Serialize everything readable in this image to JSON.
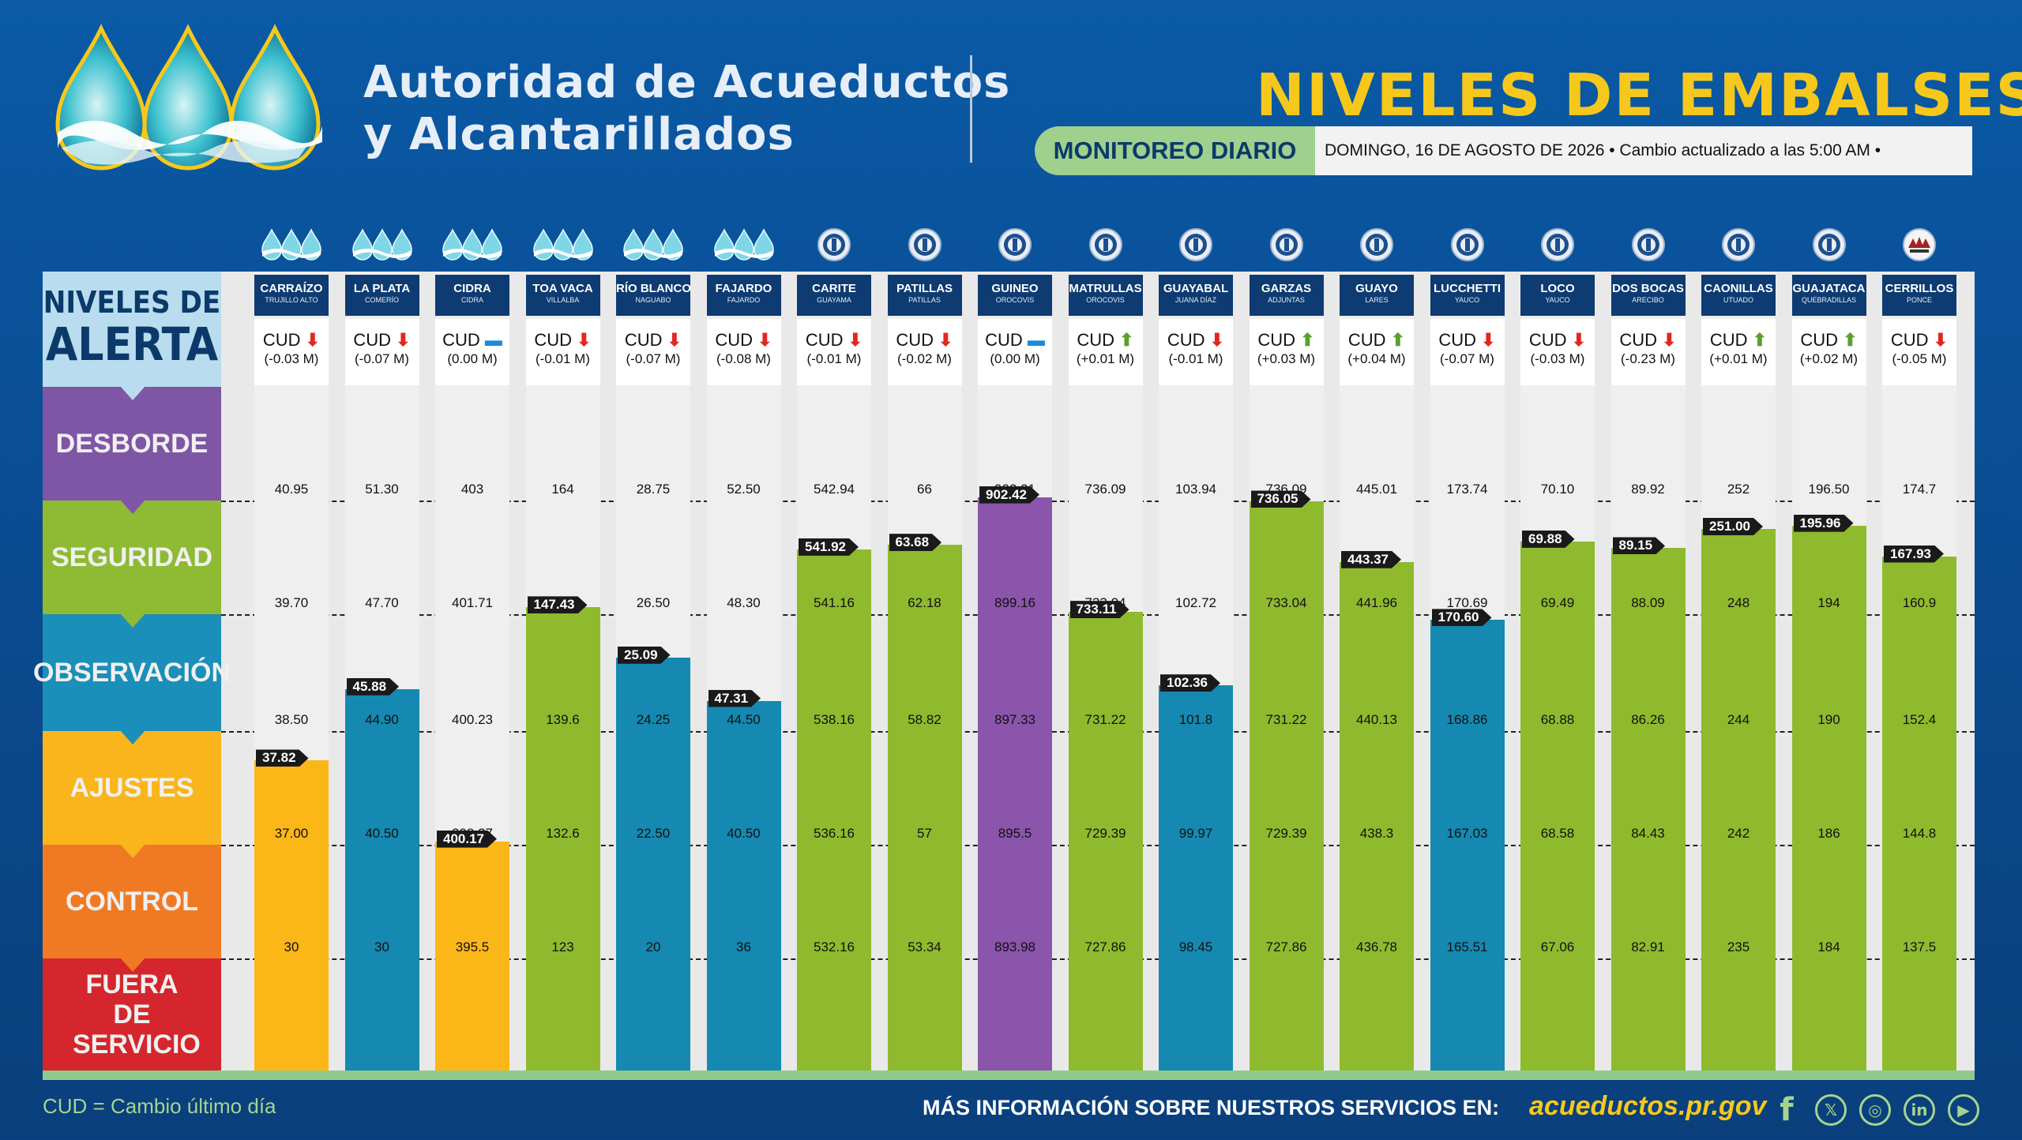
{
  "header": {
    "org_line1": "Autoridad de Acueductos",
    "org_line2": "y Alcantarillados",
    "title_a": "NIVELES DE ",
    "title_b": "EMBALSES",
    "monitor_label": "MONITOREO DIARIO",
    "date_text": "DOMINGO, 16 DE AGOSTO DE 2026 • Cambio actualizado a las 5:00 AM •"
  },
  "legend": {
    "title_l1": "NIVELES DE",
    "title_l2": "ALERTA",
    "bands": [
      {
        "label": "DESBORDE",
        "color": "#7f55a6"
      },
      {
        "label": "SEGURIDAD",
        "color": "#8fba34"
      },
      {
        "label": "OBSERVACIÓN",
        "color": "#1a8fb9"
      },
      {
        "label": "AJUSTES",
        "color": "#f9b51b"
      },
      {
        "label": "CONTROL",
        "color": "#f07a24"
      },
      {
        "label": "FUERA DE SERVICIO",
        "color": "#d4262c"
      }
    ]
  },
  "colors": {
    "purple": "#8a55aa",
    "green": "#8fba2e",
    "blue": "#1589b1",
    "yellow": "#fbb718",
    "orange": "#f07a24",
    "red": "#d4262c"
  },
  "reservoirs": [
    {
      "name": "CARRAÍZO",
      "town": "TRUJILLO ALTO",
      "icon": "water-drops-icon",
      "cud_label": "CUD",
      "trend": "down",
      "delta": "(-0.03 M)",
      "levels": [
        "40.95",
        "39.70",
        "38.50",
        "37.00",
        "30"
      ],
      "current": "37.82",
      "fraction": 0.74,
      "zone": "yellow"
    },
    {
      "name": "LA PLATA",
      "town": "COMERÍO",
      "icon": "water-drops-icon",
      "cud_label": "CUD",
      "trend": "down",
      "delta": "(-0.07 M)",
      "levels": [
        "51.30",
        "47.70",
        "44.90",
        "40.50",
        "30"
      ],
      "current": "45.88",
      "fraction": 0.36,
      "zone": "blue"
    },
    {
      "name": "CIDRA",
      "town": "CIDRA",
      "icon": "water-drops-icon",
      "cud_label": "CUD",
      "trend": "flat",
      "delta": "(0.00 M)",
      "levels": [
        "403",
        "401.71",
        "400.23",
        "398.37",
        "395.5"
      ],
      "current": "400.17",
      "fraction": 0.03,
      "zone": "yellow"
    },
    {
      "name": "TOA VACA",
      "town": "VILLALBA",
      "icon": "water-drops-icon",
      "cud_label": "CUD",
      "trend": "down",
      "delta": "(-0.01 M)",
      "levels": [
        "164",
        "147",
        "139.6",
        "132.6",
        "123"
      ],
      "current": "147.43",
      "fraction": 0.06,
      "zone": "green"
    },
    {
      "name": "RÍO BLANCO",
      "town": "NAGUABO",
      "icon": "water-drops-icon",
      "cud_label": "CUD",
      "trend": "down",
      "delta": "(-0.07 M)",
      "levels": [
        "28.75",
        "26.50",
        "24.25",
        "22.50",
        "20"
      ],
      "current": "25.09",
      "fraction": 0.63,
      "zone": "blue"
    },
    {
      "name": "FAJARDO",
      "town": "FAJARDO",
      "icon": "water-drops-icon",
      "cud_label": "CUD",
      "trend": "down",
      "delta": "(-0.08 M)",
      "levels": [
        "52.50",
        "48.30",
        "44.50",
        "40.50",
        "36"
      ],
      "current": "47.31",
      "fraction": 0.26,
      "zone": "blue"
    },
    {
      "name": "CARITE",
      "town": "GUAYAMA",
      "icon": "seal-icon",
      "cud_label": "CUD",
      "trend": "down",
      "delta": "(-0.01 M)",
      "levels": [
        "542.94",
        "541.16",
        "538.16",
        "536.16",
        "532.16"
      ],
      "current": "541.92",
      "fraction": 0.57,
      "zone": "green"
    },
    {
      "name": "PATILLAS",
      "town": "PATILLAS",
      "icon": "seal-icon",
      "cud_label": "CUD",
      "trend": "down",
      "delta": "(-0.02 M)",
      "levels": [
        "66",
        "62.18",
        "58.82",
        "57",
        "53.34"
      ],
      "current": "63.68",
      "fraction": 0.61,
      "zone": "green"
    },
    {
      "name": "GUINEO",
      "town": "OROCOVIS",
      "icon": "seal-icon",
      "cud_label": "CUD",
      "trend": "flat",
      "delta": "(0.00 M)",
      "levels": [
        "902.21",
        "899.16",
        "897.33",
        "895.5",
        "893.98"
      ],
      "current": "902.42",
      "fraction": 0.03,
      "zone": "purple"
    },
    {
      "name": "MATRULLAS",
      "town": "OROCOVIS",
      "icon": "seal-icon",
      "cud_label": "CUD",
      "trend": "up",
      "delta": "(+0.01 M)",
      "levels": [
        "736.09",
        "733.04",
        "731.22",
        "729.39",
        "727.86"
      ],
      "current": "733.11",
      "fraction": 0.02,
      "zone": "green"
    },
    {
      "name": "GUAYABAL",
      "town": "JUANA DÍAZ",
      "icon": "seal-icon",
      "cud_label": "CUD",
      "trend": "down",
      "delta": "(-0.01 M)",
      "levels": [
        "103.94",
        "102.72",
        "101.8",
        "99.97",
        "98.45"
      ],
      "current": "102.36",
      "fraction": 0.39,
      "zone": "blue"
    },
    {
      "name": "GARZAS",
      "town": "ADJUNTAS",
      "icon": "seal-icon",
      "cud_label": "CUD",
      "trend": "up",
      "delta": "(+0.03 M)",
      "levels": [
        "736.09",
        "733.04",
        "731.22",
        "729.39",
        "727.86"
      ],
      "current": "736.05",
      "fraction": 0.99,
      "zone": "green"
    },
    {
      "name": "GUAYO",
      "town": "LARES",
      "icon": "seal-icon",
      "cud_label": "CUD",
      "trend": "up",
      "delta": "(+0.04 M)",
      "levels": [
        "445.01",
        "441.96",
        "440.13",
        "438.3",
        "436.78"
      ],
      "current": "443.37",
      "fraction": 0.46,
      "zone": "green"
    },
    {
      "name": "LUCCHETTI",
      "town": "YAUCO",
      "icon": "seal-icon",
      "cud_label": "CUD",
      "trend": "down",
      "delta": "(-0.07 M)",
      "levels": [
        "173.74",
        "170.69",
        "168.86",
        "167.03",
        "165.51"
      ],
      "current": "170.60",
      "fraction": 0.95,
      "zone": "blue"
    },
    {
      "name": "LOCO",
      "town": "YAUCO",
      "icon": "seal-icon",
      "cud_label": "CUD",
      "trend": "down",
      "delta": "(-0.03 M)",
      "levels": [
        "70.10",
        "69.49",
        "68.88",
        "68.58",
        "67.06"
      ],
      "current": "69.88",
      "fraction": 0.64,
      "zone": "green"
    },
    {
      "name": "DOS BOCAS",
      "town": "ARECIBO",
      "icon": "seal-icon",
      "cud_label": "CUD",
      "trend": "down",
      "delta": "(-0.23 M)",
      "levels": [
        "89.92",
        "88.09",
        "86.26",
        "84.43",
        "82.91"
      ],
      "current": "89.15",
      "fraction": 0.58,
      "zone": "green"
    },
    {
      "name": "CAONILLAS",
      "town": "UTUADO",
      "icon": "seal-icon",
      "cud_label": "CUD",
      "trend": "up",
      "delta": "(+0.01 M)",
      "levels": [
        "252",
        "248",
        "244",
        "242",
        "235"
      ],
      "current": "251.00",
      "fraction": 0.75,
      "zone": "green"
    },
    {
      "name": "GUAJATACA",
      "town": "QUEBRADILLAS",
      "icon": "seal-icon",
      "cud_label": "CUD",
      "trend": "up",
      "delta": "(+0.02 M)",
      "levels": [
        "196.50",
        "194",
        "190",
        "186",
        "184"
      ],
      "current": "195.96",
      "fraction": 0.78,
      "zone": "green"
    },
    {
      "name": "CERRILLOS",
      "town": "PONCE",
      "icon": "usace-icon",
      "cud_label": "CUD",
      "trend": "down",
      "delta": "(-0.05 M)",
      "levels": [
        "174.7",
        "160.9",
        "152.4",
        "144.8",
        "137.5"
      ],
      "current": "167.93",
      "fraction": 0.51,
      "zone": "green"
    }
  ],
  "footer": {
    "cud_note": "CUD = Cambio último día",
    "more_info": "MÁS INFORMACIÓN SOBRE NUESTROS SERVICIOS EN:",
    "url": "acueductos.pr.gov",
    "social": [
      "facebook-icon",
      "x-icon",
      "instagram-icon",
      "linkedin-icon",
      "youtube-icon"
    ]
  }
}
